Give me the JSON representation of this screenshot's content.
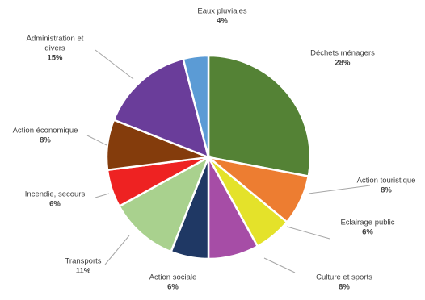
{
  "chart_data": {
    "type": "pie",
    "title": "",
    "slices": [
      {
        "label": "Déchets ménagers",
        "value": 28,
        "pct_label": "28%",
        "color": "#548235"
      },
      {
        "label": "Action touristique",
        "value": 8,
        "pct_label": "8%",
        "color": "#ED7D31"
      },
      {
        "label": "Eclairage public",
        "value": 6,
        "pct_label": "6%",
        "color": "#E4E22A"
      },
      {
        "label": "Culture et sports",
        "value": 8,
        "pct_label": "8%",
        "color": "#A64DA6"
      },
      {
        "label": "Action sociale",
        "value": 6,
        "pct_label": "6%",
        "color": "#1F3864"
      },
      {
        "label": "Transports",
        "value": 11,
        "pct_label": "11%",
        "color": "#A9D18E"
      },
      {
        "label": "Incendie, secours",
        "value": 6,
        "pct_label": "6%",
        "color": "#EE2222"
      },
      {
        "label": "Action économique",
        "value": 8,
        "pct_label": "8%",
        "color": "#843C0C"
      },
      {
        "label": "Administration et divers",
        "value": 15,
        "pct_label": "15%",
        "color": "#6A3D9A"
      },
      {
        "label": "Eaux pluviales",
        "value": 4,
        "pct_label": "4%",
        "color": "#5B9BD5"
      }
    ]
  }
}
